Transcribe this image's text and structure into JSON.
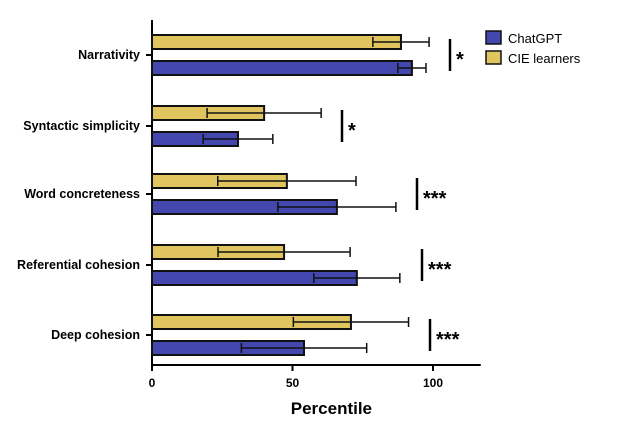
{
  "chart_data": {
    "type": "bar",
    "orientation": "horizontal",
    "title": "",
    "xlabel": "Percentile",
    "ylabel": "",
    "xlim": [
      0,
      117
    ],
    "xticks": [
      0,
      50,
      100
    ],
    "grid": false,
    "legend_position": "top-right",
    "categories": [
      "Narrativity",
      "Syntactic simplicity",
      "Word concreteness",
      "Referential cohesion",
      "Deep cohesion"
    ],
    "series": [
      {
        "name": "ChatGPT",
        "color": "#4347AE",
        "values": [
          92.5,
          30.6,
          65.8,
          72.9,
          54.1
        ],
        "errors": [
          5.0,
          12.4,
          21.0,
          15.3,
          22.3
        ]
      },
      {
        "name": "CIE learners",
        "color": "#E0C45E",
        "values": [
          88.6,
          39.9,
          48.0,
          47.0,
          70.8
        ],
        "errors": [
          10.0,
          20.3,
          24.6,
          23.5,
          20.5
        ]
      }
    ],
    "significance": [
      "*",
      "*",
      "***",
      "***",
      "***"
    ]
  }
}
